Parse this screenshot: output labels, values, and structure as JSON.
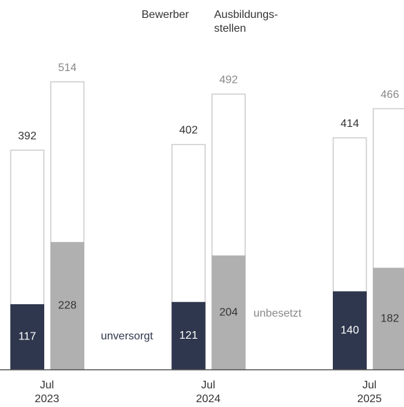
{
  "chart_data": {
    "type": "bar",
    "categories": [
      "Jul 2023",
      "Jul 2024",
      "Jul 2025"
    ],
    "ylim": [
      0,
      660
    ],
    "series": [
      {
        "name": "Bewerber",
        "color": "#ffffff",
        "outline": "#cccccc",
        "values": [
          392,
          402,
          414
        ]
      },
      {
        "name": "unversorgt",
        "color": "#2e374d",
        "values": [
          117,
          121,
          140
        ]
      },
      {
        "name": "Ausbildungs-stellen",
        "color": "#ffffff",
        "outline": "#cccccc",
        "values": [
          514,
          492,
          466
        ]
      },
      {
        "name": "unbesetzt",
        "color": "#b0b0b0",
        "values": [
          228,
          204,
          182
        ]
      }
    ]
  }
}
